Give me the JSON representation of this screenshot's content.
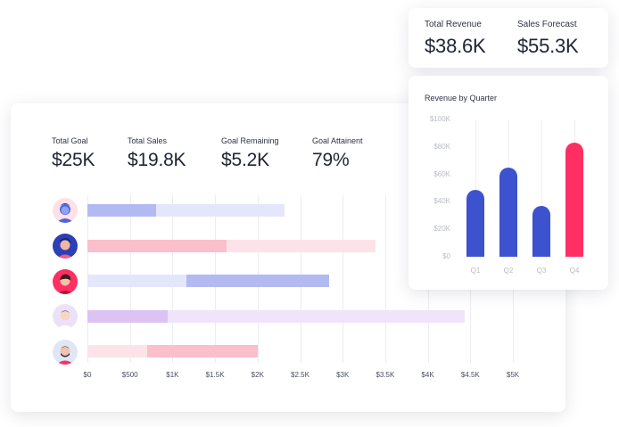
{
  "kpis": [
    {
      "label": "Total Goal",
      "value": "$25K"
    },
    {
      "label": "Total Sales",
      "value": "$19.8K"
    },
    {
      "label": "Goal Remaining",
      "value": "$5.2K"
    },
    {
      "label": "Goal Attainent",
      "value": "79%"
    }
  ],
  "top_kpis": [
    {
      "label": "Total Revenue",
      "value": "$38.6K"
    },
    {
      "label": "Sales Forecast",
      "value": "$55.3K"
    }
  ],
  "rep_chart": {
    "x_ticks": [
      "$0",
      "$500",
      "$1K",
      "$1.5K",
      "$2K",
      "$2.5K",
      "$3K",
      "$3.5K",
      "$4K",
      "$4.5K",
      "$5K"
    ],
    "rows": [
      {
        "avatar": "avatar-1-icon",
        "color_fg": "#b3baf2",
        "color_bg": "#e4e7fb",
        "fg_start": 0,
        "fg_end": 810,
        "bg_end": 2320
      },
      {
        "avatar": "avatar-2-icon",
        "color_fg": "#fbbfcc",
        "color_bg": "#fde3e9",
        "fg_start": 0,
        "fg_end": 1630,
        "bg_end": 3390
      },
      {
        "avatar": "avatar-3-icon",
        "color_fg": "#b3baf2",
        "color_bg": "#e4e7fb",
        "fg_start": 1160,
        "fg_end": 2840,
        "bg_end": 1160
      },
      {
        "avatar": "avatar-4-icon",
        "color_fg": "#dcc3f3",
        "color_bg": "#f0e4fa",
        "fg_start": 0,
        "fg_end": 940,
        "bg_end": 4430
      },
      {
        "avatar": "avatar-5-icon",
        "color_fg": "#fbbfcc",
        "color_bg": "#fde3e9",
        "fg_start": 700,
        "fg_end": 2000,
        "bg_end": 700
      }
    ]
  },
  "quarter_chart": {
    "title": "Revenue by Quarter",
    "y_ticks": [
      "$100K",
      "$80K",
      "$60K",
      "$40K",
      "$20K",
      "$0"
    ],
    "categories": [
      "Q1",
      "Q2",
      "Q3",
      "Q4"
    ],
    "values": [
      49000,
      65000,
      37000,
      83000
    ],
    "colors": [
      "#3d52cf",
      "#3d52cf",
      "#3d52cf",
      "#ff2e63"
    ]
  },
  "chart_data": [
    {
      "type": "bar",
      "categories": [
        "Q1",
        "Q2",
        "Q3",
        "Q4"
      ],
      "values": [
        49000,
        65000,
        37000,
        83000
      ],
      "title": "Revenue by Quarter",
      "ylim": [
        0,
        100000
      ]
    }
  ]
}
